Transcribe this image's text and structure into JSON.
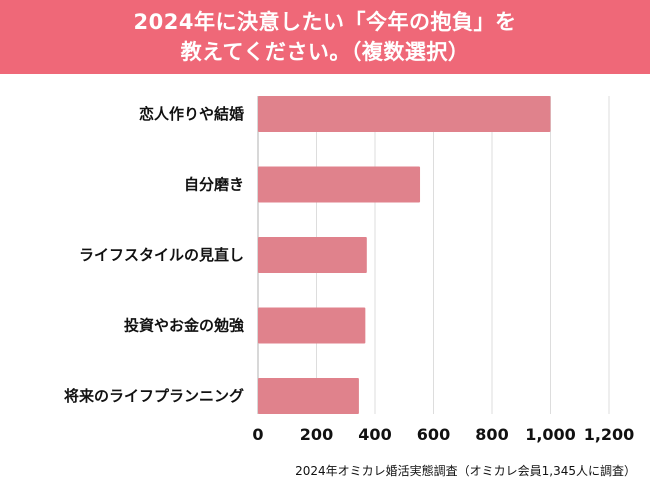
{
  "title": {
    "line1": "2024年に決意したい「今年の抱負」を",
    "line2": "教えてください。（複数選択）"
  },
  "chart_data": {
    "type": "bar",
    "orientation": "horizontal",
    "categories": [
      "恋人作りや結婚",
      "自分磨き",
      "ライフスタイルの見直し",
      "投資やお金の勉強",
      "将来のライフプランニング"
    ],
    "values": [
      1000,
      554,
      372,
      367,
      345
    ],
    "xlim": [
      0,
      1200
    ],
    "xticks": [
      0,
      200,
      400,
      600,
      800,
      1000,
      1200
    ],
    "xtick_labels": [
      "0",
      "200",
      "400",
      "600",
      "800",
      "1,000",
      "1,200"
    ],
    "grid": true,
    "bar_color": "#e0828c",
    "header_color": "#ef6878"
  },
  "source": "2024年オミカレ婚活実態調査（オミカレ会員1,345人に調査）"
}
